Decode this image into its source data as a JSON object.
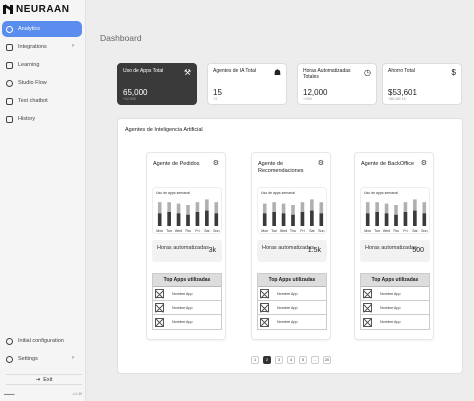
{
  "brand": {
    "name": "NEURAAN"
  },
  "sidebar": {
    "items": [
      {
        "label": "Analytics",
        "icon": "pie-chart-icon"
      },
      {
        "label": "Integrations",
        "icon": "grid-icon"
      },
      {
        "label": "Learning",
        "icon": "book-icon"
      },
      {
        "label": "Studio Flow",
        "icon": "flow-icon"
      },
      {
        "label": "Test chatbot",
        "icon": "chat-icon"
      },
      {
        "label": "History",
        "icon": "history-icon"
      }
    ],
    "footer": {
      "initial_config": "Initial configuration",
      "settings": "Settings",
      "exit": "Exit",
      "version": "v.1.49"
    }
  },
  "page": {
    "title": "Dashboard"
  },
  "stats": [
    {
      "label": "Uso de Apps Total",
      "value": "65,000",
      "sub": "+12,000",
      "icon": "tools-icon"
    },
    {
      "label": "Agentes de IA Total",
      "value": "15",
      "sub": "+3",
      "icon": "robot-icon"
    },
    {
      "label": "Horas Automatizadas Totales",
      "value": "12,000",
      "sub": "+15%",
      "icon": "clock-icon"
    },
    {
      "label": "Ahorro Total",
      "value": "$53,601",
      "sub": "+$8,482.15",
      "icon": "dollar-icon"
    }
  ],
  "agents_panel": {
    "title": "Agentes de Inteligencia Artificial",
    "chart_title": "Uso de apps semanal",
    "hours_label": "Horas automatizadas",
    "apps_header": "Top Apps utilizadas",
    "agents": [
      {
        "name": "Agente de Pedidos",
        "hours": "3k",
        "apps": [
          "Nombre App",
          "Nombre App",
          "Nombre App"
        ]
      },
      {
        "name": "Agente de Recomendaciones",
        "hours": "1.5k",
        "apps": [
          "Nombre App",
          "Nombre App",
          "Nombre App"
        ]
      },
      {
        "name": "Agente de BackOffice",
        "hours": "500",
        "apps": [
          "Nombre App",
          "Nombre App",
          "Nombre App"
        ]
      }
    ]
  },
  "chart_data": [
    {
      "type": "bar",
      "title": "Uso de apps semanal",
      "categories": [
        "Mon",
        "Tue",
        "Wed",
        "Thu",
        "Fri",
        "Sat",
        "Sun"
      ],
      "series": [
        {
          "values": [
            0.85,
            0.85,
            0.8,
            0.75,
            0.85,
            0.95,
            0.85
          ],
          "color": "#b0b0b0"
        },
        {
          "values": [
            0.45,
            0.5,
            0.45,
            0.4,
            0.5,
            0.55,
            0.45
          ],
          "color": "#3a3a3a"
        }
      ]
    },
    {
      "type": "bar",
      "title": "Uso de apps semanal",
      "categories": [
        "Mon",
        "Tue",
        "Wed",
        "Thu",
        "Fri",
        "Sat",
        "Sun"
      ],
      "series": [
        {
          "values": [
            0.8,
            0.85,
            0.8,
            0.75,
            0.85,
            0.95,
            0.85
          ],
          "color": "#b0b0b0"
        },
        {
          "values": [
            0.45,
            0.5,
            0.45,
            0.4,
            0.5,
            0.55,
            0.45
          ],
          "color": "#3a3a3a"
        }
      ]
    },
    {
      "type": "bar",
      "title": "Uso de apps semanal",
      "categories": [
        "Mon",
        "Tue",
        "Wed",
        "Thu",
        "Fri",
        "Sat",
        "Sun"
      ],
      "series": [
        {
          "values": [
            0.85,
            0.85,
            0.8,
            0.75,
            0.85,
            0.95,
            0.85
          ],
          "color": "#b0b0b0"
        },
        {
          "values": [
            0.45,
            0.5,
            0.45,
            0.4,
            0.5,
            0.55,
            0.45
          ],
          "color": "#3a3a3a"
        }
      ]
    }
  ],
  "pagination": {
    "pages": [
      "1",
      "2",
      "3",
      "4",
      "5",
      "...",
      "20"
    ],
    "active": "2"
  }
}
